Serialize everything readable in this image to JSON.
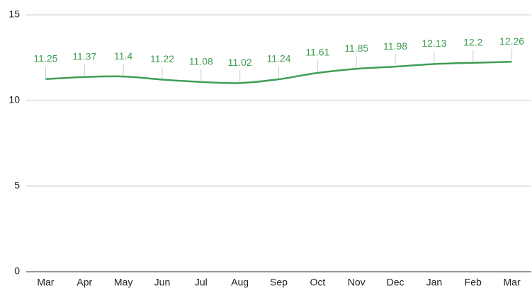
{
  "chart_data": {
    "type": "line",
    "categories": [
      "Mar",
      "Apr",
      "May",
      "Jun",
      "Jul",
      "Aug",
      "Sep",
      "Oct",
      "Nov",
      "Dec",
      "Jan",
      "Feb",
      "Mar"
    ],
    "values": [
      11.25,
      11.37,
      11.4,
      11.22,
      11.08,
      11.02,
      11.24,
      11.61,
      11.85,
      11.98,
      12.13,
      12.2,
      12.26
    ],
    "color": "#3f9e52",
    "ylim": [
      0,
      15
    ],
    "yticks": [
      0,
      5,
      10,
      15
    ],
    "grid": true,
    "smooth": true,
    "data_labels": true
  }
}
